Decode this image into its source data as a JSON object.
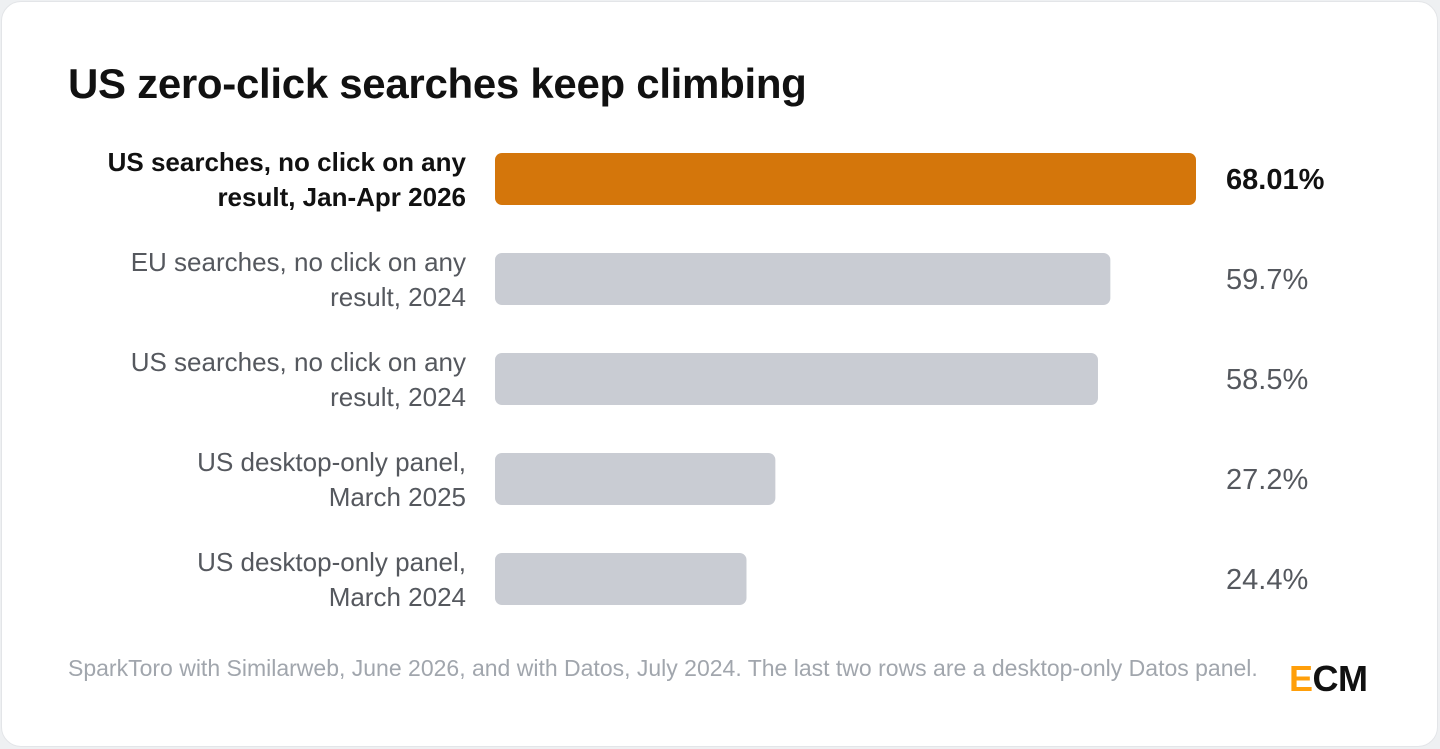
{
  "title": "US zero-click searches keep climbing",
  "footer": "SparkToro with Similarweb, June 2026, and with Datos, July 2024. The last two rows are a desktop-only Datos panel.",
  "logo": {
    "first": "E",
    "rest": "CM"
  },
  "colors": {
    "highlight": "#d4760b",
    "muted_bar": "#c9ccd3",
    "highlight_text": "#111111",
    "muted_text": "#55585e",
    "logo_accent": "#ff9f0a"
  },
  "chart_data": {
    "type": "bar",
    "orientation": "horizontal",
    "categories": [
      [
        "US searches, no click on any",
        "result, Jan-Apr 2026"
      ],
      [
        "EU searches, no click on any",
        "result, 2024"
      ],
      [
        "US searches, no click on any",
        "result, 2024"
      ],
      [
        "US desktop-only panel,",
        "March 2025"
      ],
      [
        "US desktop-only panel,",
        "March 2024"
      ]
    ],
    "values": [
      68.01,
      59.7,
      58.5,
      27.2,
      24.4
    ],
    "value_labels": [
      "68.01%",
      "59.7%",
      "58.5%",
      "27.2%",
      "24.4%"
    ],
    "highlight_index": 0,
    "xlim": [
      0,
      68.01
    ],
    "grid": false,
    "legend": "none"
  }
}
